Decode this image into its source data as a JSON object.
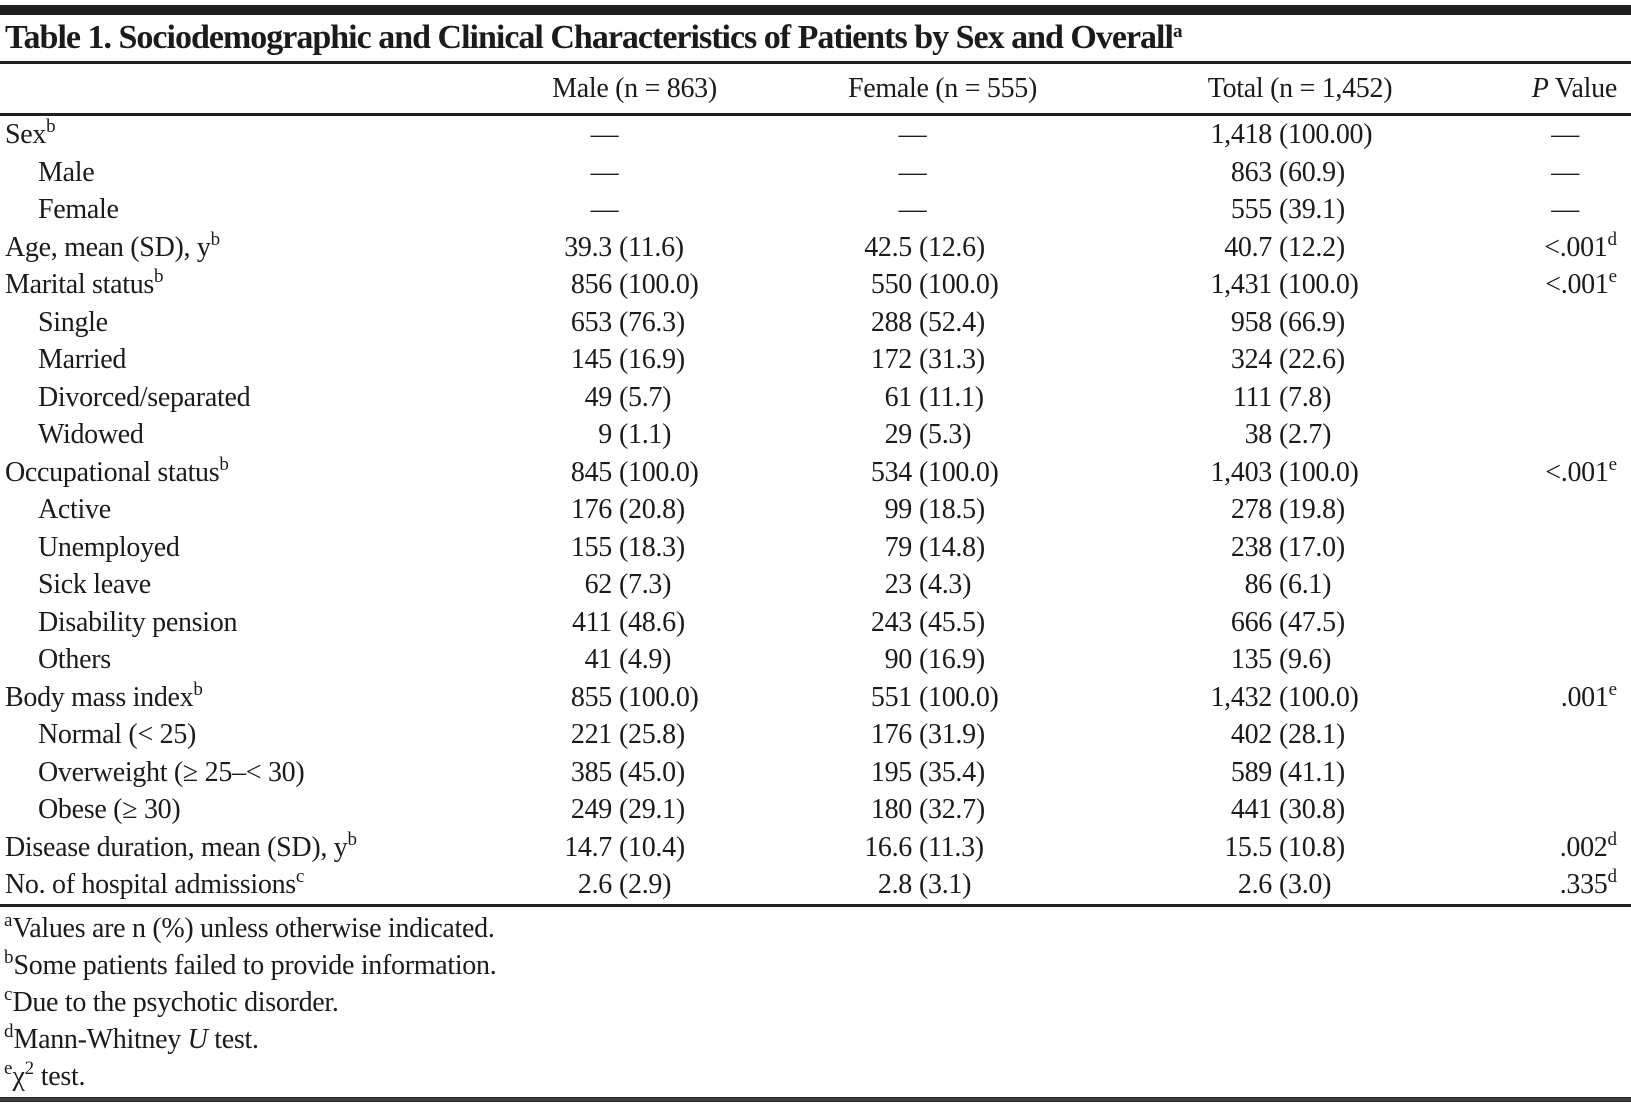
{
  "title": {
    "text": "Table 1. Sociodemographic and Clinical Characteristics of Patients by Sex and Overall",
    "sup": "a"
  },
  "header": {
    "male": "Male (n = 863)",
    "female": "Female (n = 555)",
    "total": "Total (n = 1,452)",
    "p_italic": "P",
    "p_rest": " Value"
  },
  "rows": [
    {
      "label": "Sex",
      "sup": "b",
      "indent": false,
      "male": [
        "—",
        ""
      ],
      "female": [
        "—",
        ""
      ],
      "total": [
        "1,418",
        "(100.00)"
      ],
      "p": [
        "—",
        ""
      ]
    },
    {
      "label": "Male",
      "sup": "",
      "indent": true,
      "male": [
        "—",
        ""
      ],
      "female": [
        "—",
        ""
      ],
      "total": [
        "863",
        "(60.9)"
      ],
      "p": [
        "—",
        ""
      ]
    },
    {
      "label": "Female",
      "sup": "",
      "indent": true,
      "male": [
        "—",
        ""
      ],
      "female": [
        "—",
        ""
      ],
      "total": [
        "555",
        "(39.1)"
      ],
      "p": [
        "—",
        ""
      ]
    },
    {
      "label": "Age, mean (SD), y",
      "sup": "b",
      "indent": false,
      "male": [
        "39.3",
        "(11.6)"
      ],
      "female": [
        "42.5",
        "(12.6)"
      ],
      "total": [
        "40.7",
        "(12.2)"
      ],
      "p": [
        "<.001",
        "d"
      ]
    },
    {
      "label": "Marital status",
      "sup": "b",
      "indent": false,
      "male": [
        "856",
        "(100.0)"
      ],
      "female": [
        "550",
        "(100.0)"
      ],
      "total": [
        "1,431",
        "(100.0)"
      ],
      "p": [
        "<.001",
        "e"
      ]
    },
    {
      "label": "Single",
      "sup": "",
      "indent": true,
      "male": [
        "653",
        "(76.3)"
      ],
      "female": [
        "288",
        "(52.4)"
      ],
      "total": [
        "958",
        "(66.9)"
      ],
      "p": null
    },
    {
      "label": "Married",
      "sup": "",
      "indent": true,
      "male": [
        "145",
        "(16.9)"
      ],
      "female": [
        "172",
        "(31.3)"
      ],
      "total": [
        "324",
        "(22.6)"
      ],
      "p": null
    },
    {
      "label": "Divorced/separated",
      "sup": "",
      "indent": true,
      "male": [
        "49",
        "(5.7)"
      ],
      "female": [
        "61",
        "(11.1)"
      ],
      "total": [
        "111",
        "(7.8)"
      ],
      "p": null
    },
    {
      "label": "Widowed",
      "sup": "",
      "indent": true,
      "male": [
        "9",
        "(1.1)"
      ],
      "female": [
        "29",
        "(5.3)"
      ],
      "total": [
        "38",
        "(2.7)"
      ],
      "p": null
    },
    {
      "label": "Occupational status",
      "sup": "b",
      "indent": false,
      "male": [
        "845",
        "(100.0)"
      ],
      "female": [
        "534",
        "(100.0)"
      ],
      "total": [
        "1,403",
        "(100.0)"
      ],
      "p": [
        "<.001",
        "e"
      ]
    },
    {
      "label": "Active",
      "sup": "",
      "indent": true,
      "male": [
        "176",
        "(20.8)"
      ],
      "female": [
        "99",
        "(18.5)"
      ],
      "total": [
        "278",
        "(19.8)"
      ],
      "p": null
    },
    {
      "label": "Unemployed",
      "sup": "",
      "indent": true,
      "male": [
        "155",
        "(18.3)"
      ],
      "female": [
        "79",
        "(14.8)"
      ],
      "total": [
        "238",
        "(17.0)"
      ],
      "p": null
    },
    {
      "label": "Sick leave",
      "sup": "",
      "indent": true,
      "male": [
        "62",
        "(7.3)"
      ],
      "female": [
        "23",
        "(4.3)"
      ],
      "total": [
        "86",
        "(6.1)"
      ],
      "p": null
    },
    {
      "label": "Disability pension",
      "sup": "",
      "indent": true,
      "male": [
        "411",
        "(48.6)"
      ],
      "female": [
        "243",
        "(45.5)"
      ],
      "total": [
        "666",
        "(47.5)"
      ],
      "p": null
    },
    {
      "label": "Others",
      "sup": "",
      "indent": true,
      "male": [
        "41",
        "(4.9)"
      ],
      "female": [
        "90",
        "(16.9)"
      ],
      "total": [
        "135",
        "(9.6)"
      ],
      "p": null
    },
    {
      "label": "Body mass index",
      "sup": "b",
      "indent": false,
      "male": [
        "855",
        "(100.0)"
      ],
      "female": [
        "551",
        "(100.0)"
      ],
      "total": [
        "1,432",
        "(100.0)"
      ],
      "p": [
        ".001",
        "e"
      ]
    },
    {
      "label": "Normal (< 25)",
      "sup": "",
      "indent": true,
      "male": [
        "221",
        "(25.8)"
      ],
      "female": [
        "176",
        "(31.9)"
      ],
      "total": [
        "402",
        "(28.1)"
      ],
      "p": null
    },
    {
      "label": "Overweight (≥ 25–< 30)",
      "sup": "",
      "indent": true,
      "male": [
        "385",
        "(45.0)"
      ],
      "female": [
        "195",
        "(35.4)"
      ],
      "total": [
        "589",
        "(41.1)"
      ],
      "p": null
    },
    {
      "label": "Obese (≥ 30)",
      "sup": "",
      "indent": true,
      "male": [
        "249",
        "(29.1)"
      ],
      "female": [
        "180",
        "(32.7)"
      ],
      "total": [
        "441",
        "(30.8)"
      ],
      "p": null
    },
    {
      "label": "Disease duration, mean (SD), y",
      "sup": "b",
      "indent": false,
      "male": [
        "14.7",
        "(10.4)"
      ],
      "female": [
        "16.6",
        "(11.3)"
      ],
      "total": [
        "15.5",
        "(10.8)"
      ],
      "p": [
        ".002",
        "d"
      ]
    },
    {
      "label": "No. of hospital admissions",
      "sup": "c",
      "indent": false,
      "male": [
        "2.6",
        "(2.9)"
      ],
      "female": [
        "2.8",
        "(3.1)"
      ],
      "total": [
        "2.6",
        "(3.0)"
      ],
      "p": [
        ".335",
        "d"
      ]
    }
  ],
  "footnotes": [
    {
      "sup": "a",
      "parts": [
        {
          "t": "Values are n (%) unless otherwise indicated."
        }
      ]
    },
    {
      "sup": "b",
      "parts": [
        {
          "t": "Some patients failed to provide information."
        }
      ]
    },
    {
      "sup": "c",
      "parts": [
        {
          "t": "Due to the psychotic disorder."
        }
      ]
    },
    {
      "sup": "d",
      "parts": [
        {
          "t": "Mann-Whitney "
        },
        {
          "t": "U",
          "i": true
        },
        {
          "t": " test."
        }
      ]
    },
    {
      "sup": "e",
      "parts": [
        {
          "t": "χ"
        },
        {
          "t": "2",
          "s": true
        },
        {
          "t": " test."
        }
      ]
    }
  ],
  "colors": {
    "text": "#1b1b1b",
    "bar": "#201d1e",
    "rule": "#201d1e",
    "bottom_rule": "#3f3f3f"
  }
}
